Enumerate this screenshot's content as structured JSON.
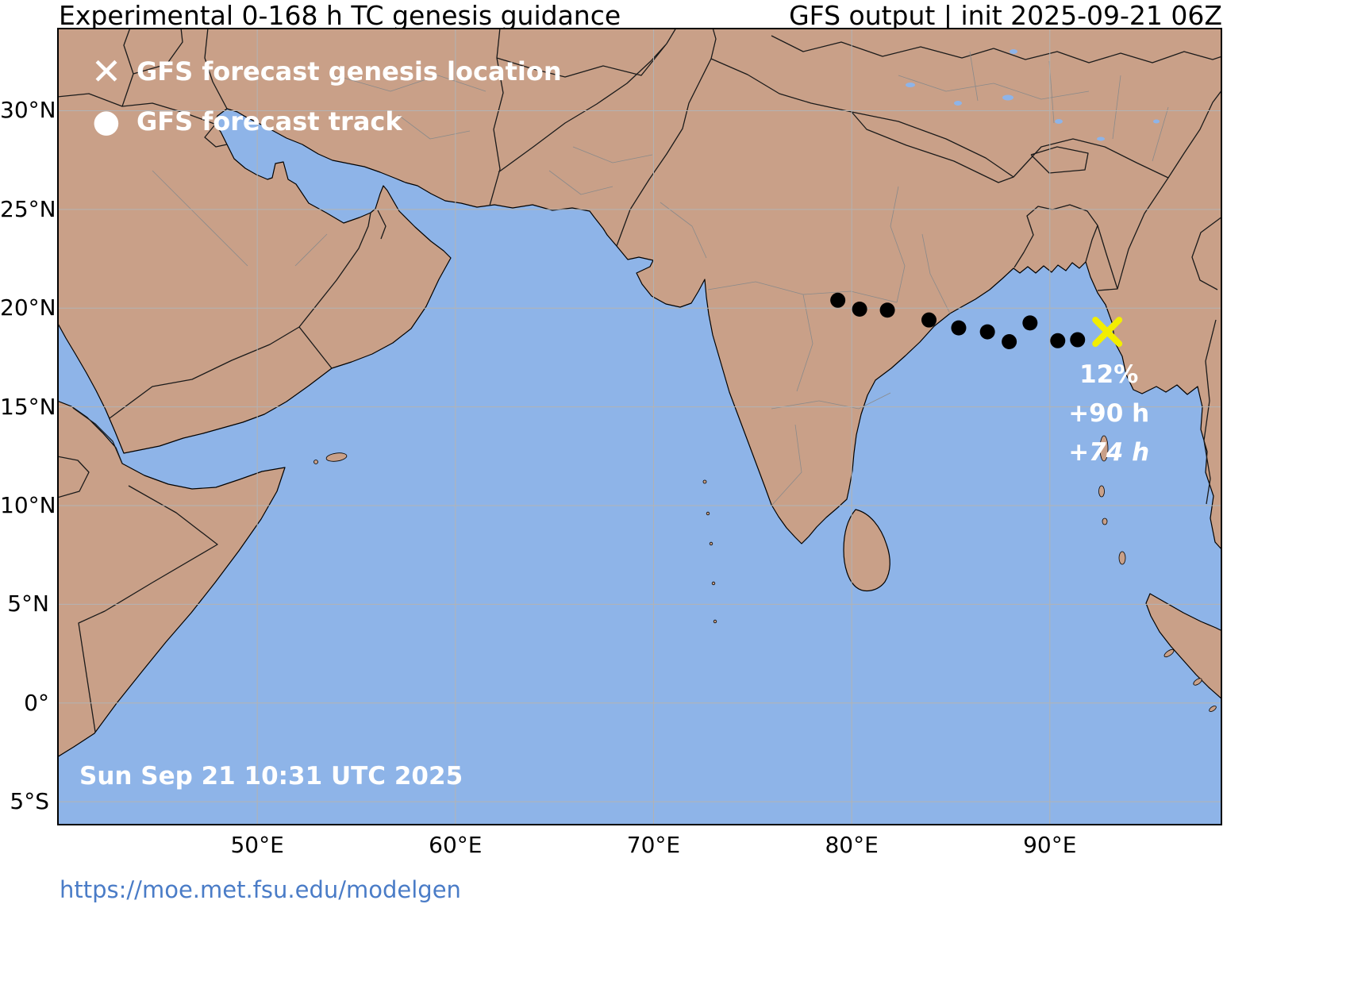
{
  "header": {
    "title_left": "Experimental 0-168 h TC genesis guidance",
    "title_right": "GFS output | init 2025-09-21 06Z"
  },
  "legend": {
    "items": [
      {
        "icon": "genesis-x",
        "label": "GFS forecast genesis location"
      },
      {
        "icon": "track-dot",
        "label": "GFS forecast track"
      }
    ]
  },
  "map": {
    "timestamp": "Sun Sep 21 10:31 UTC 2025",
    "genesis_annotation": {
      "probability": "12%",
      "genesis_hour": "+90 h",
      "track_hour": "+74 h"
    }
  },
  "axes": {
    "lat_ticks": [
      {
        "value": 30,
        "label": "30°N"
      },
      {
        "value": 25,
        "label": "25°N"
      },
      {
        "value": 20,
        "label": "20°N"
      },
      {
        "value": 15,
        "label": "15°N"
      },
      {
        "value": 10,
        "label": "10°N"
      },
      {
        "value": 5,
        "label": "5°N"
      },
      {
        "value": 0,
        "label": "0°"
      },
      {
        "value": -5,
        "label": "5°S"
      }
    ],
    "lon_ticks": [
      {
        "value": 50,
        "label": "50°E"
      },
      {
        "value": 60,
        "label": "60°E"
      },
      {
        "value": 70,
        "label": "70°E"
      },
      {
        "value": 80,
        "label": "80°E"
      },
      {
        "value": 90,
        "label": "90°E"
      }
    ]
  },
  "footer": {
    "url": "https://moe.met.fsu.edu/modelgen"
  },
  "colors": {
    "ocean": "#8eb4e8",
    "land": "#c9a088",
    "coast": "#000000",
    "border": "#1a1a1a",
    "state_border": "#8a8a8a",
    "grid": "#b3b3b3",
    "track": "#000000",
    "genesis": "#f2ee00",
    "link": "#4a7cc7"
  },
  "chart_data": {
    "type": "map-track",
    "model": "GFS",
    "init": "2025-09-21 06Z",
    "extent": {
      "lon_min": 39.9,
      "lon_max": 98.7,
      "lat_min": -6.2,
      "lat_max": 34.2
    },
    "track_points": [
      [
        79.3,
        20.4
      ],
      [
        80.4,
        19.95
      ],
      [
        81.8,
        19.9
      ],
      [
        83.9,
        19.4
      ],
      [
        85.4,
        19.0
      ],
      [
        86.85,
        18.8
      ],
      [
        87.95,
        18.3
      ],
      [
        89.0,
        19.25
      ],
      [
        90.4,
        18.35
      ],
      [
        91.4,
        18.4
      ]
    ],
    "genesis_point": [
      92.9,
      18.8
    ],
    "genesis_probability_pct": 12,
    "genesis_forecast_hour": 90,
    "track_last_hour": 74
  }
}
